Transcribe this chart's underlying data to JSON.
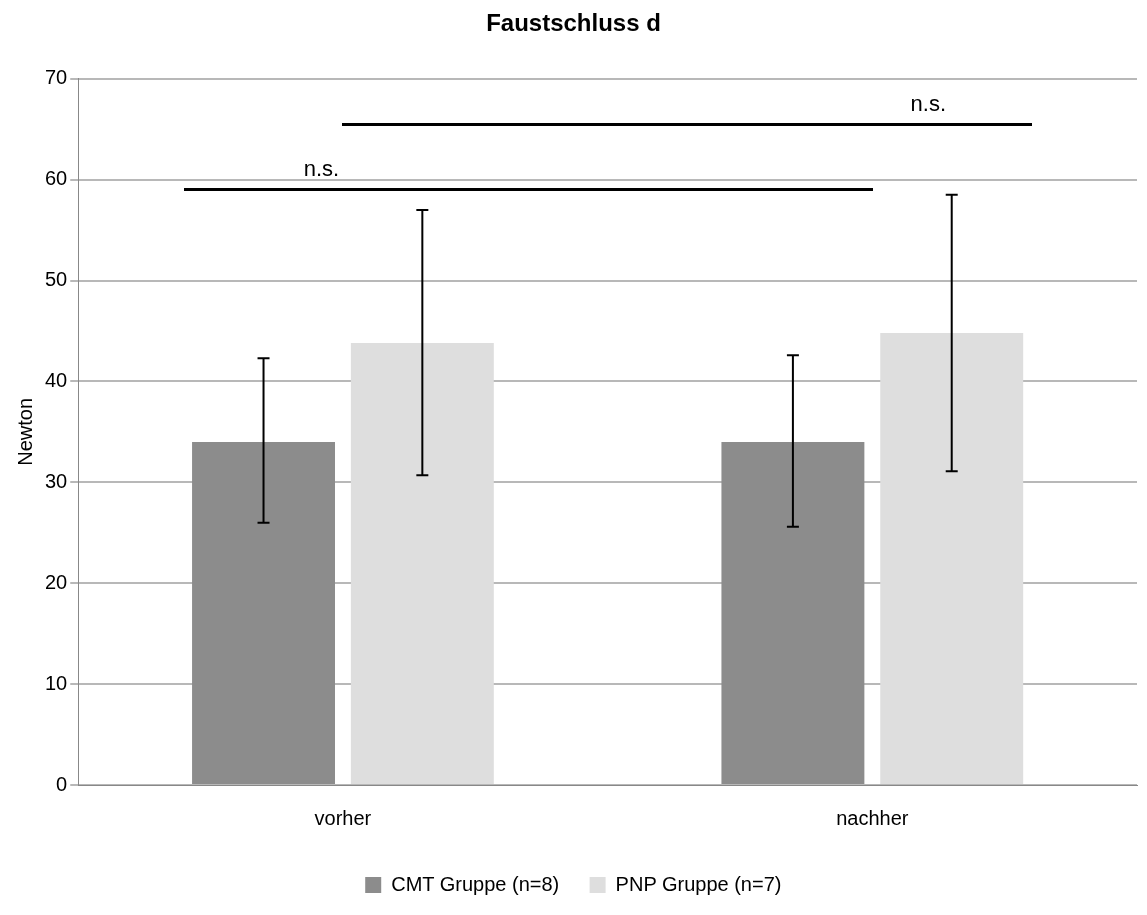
{
  "chart_data": {
    "type": "bar",
    "title": "Faustschluss d",
    "ylabel": "Newton",
    "categories": [
      "vorher",
      "nachher"
    ],
    "series": [
      {
        "name": "CMT Gruppe (n=8)",
        "color": "#8c8c8c",
        "values": [
          34,
          34
        ],
        "errors": [
          [
            26,
            42.3
          ],
          [
            25.6,
            42.6
          ]
        ]
      },
      {
        "name": "PNP Gruppe (n=7)",
        "color": "#dedede",
        "values": [
          43.8,
          44.8
        ],
        "errors": [
          [
            30.7,
            57
          ],
          [
            31.1,
            58.5
          ]
        ]
      }
    ],
    "annotations": [
      "n.s.",
      "n.s."
    ],
    "ylim": [
      0,
      70
    ],
    "yticks": [
      0,
      10,
      20,
      30,
      40,
      50,
      60,
      70
    ],
    "grid": "y",
    "legend": "bottom"
  }
}
